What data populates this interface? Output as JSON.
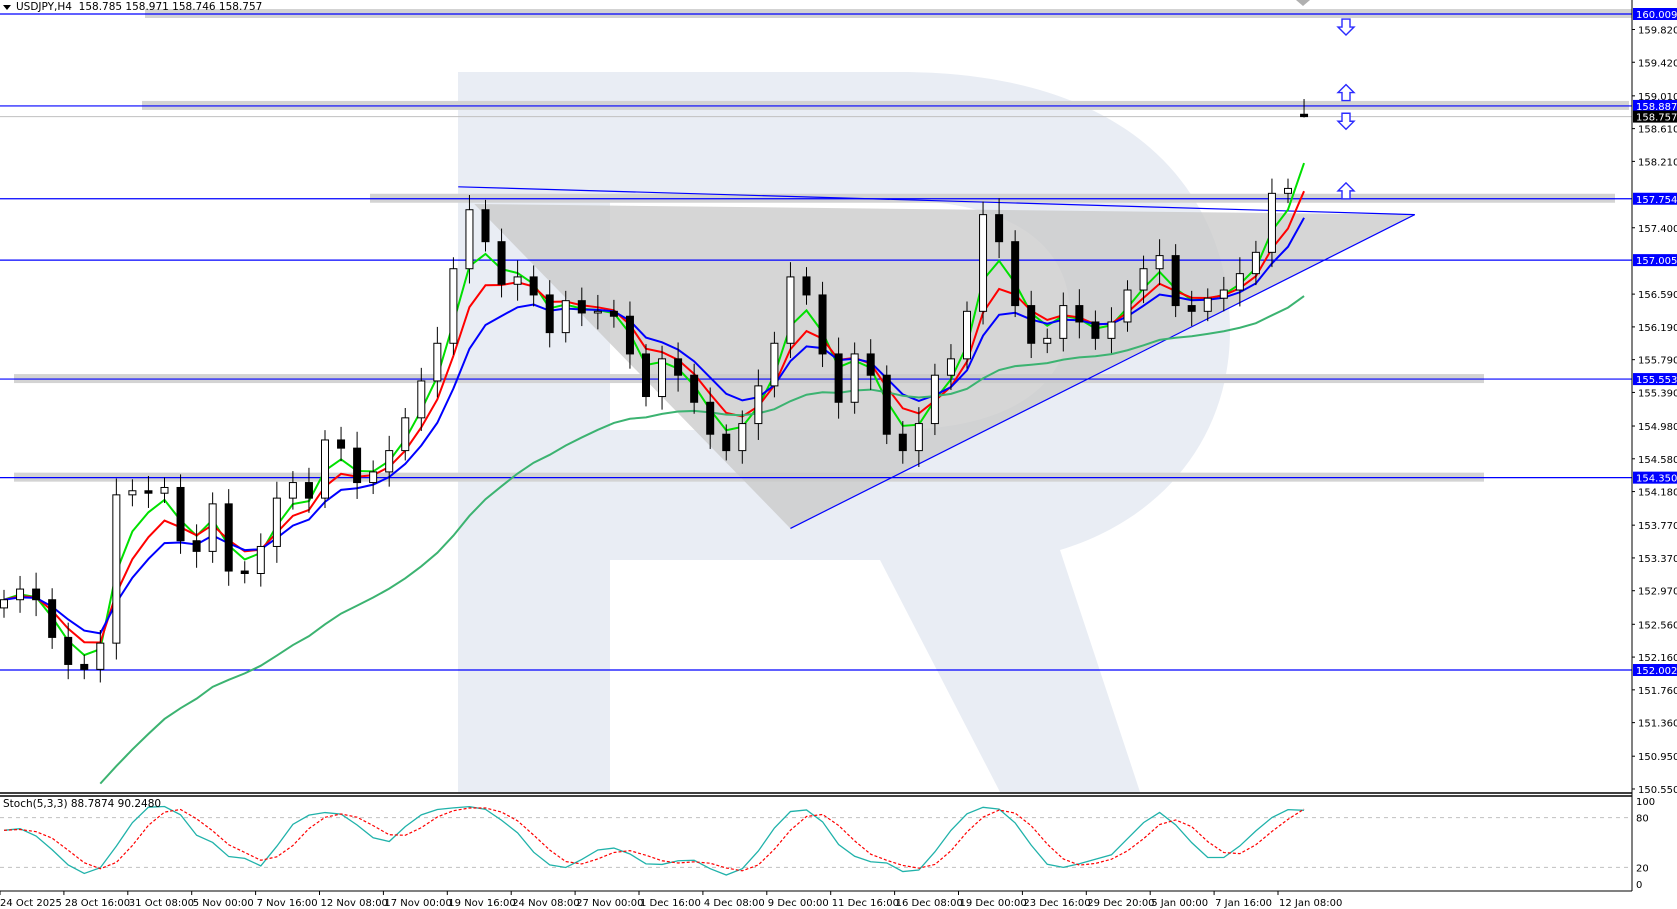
{
  "header": {
    "symbol": "USDJPY,H4",
    "ohlc": "158.785 158.971 158.746 158.757"
  },
  "stoch": {
    "label": "Stoch(5,3,3) 88.7874 90.2480",
    "levels": [
      "100",
      "80",
      "20",
      "0"
    ]
  },
  "colors": {
    "fast_ma": "#00e000",
    "mid_ma": "#ff0000",
    "slow_ma": "#0000ff",
    "long_ma": "#3cb371",
    "stoch_main": "#20b2aa",
    "stoch_signal": "#ff0000",
    "level_line": "#0000ff",
    "band": "#d3d3d3",
    "triangle_fill": "#c8c8c8"
  },
  "chart_data": {
    "type": "candlestick",
    "symbol": "USDJPY",
    "timeframe": "H4",
    "ylim": [
      150.55,
      160.009
    ],
    "closes": [
      152.86,
      152.99,
      152.86,
      152.4,
      152.07,
      152.01,
      152.33,
      154.14,
      154.19,
      154.16,
      154.23,
      153.58,
      153.45,
      154.03,
      153.21,
      153.18,
      153.51,
      154.1,
      154.29,
      154.1,
      154.81,
      154.71,
      154.29,
      154.42,
      154.68,
      155.08,
      155.53,
      155.99,
      156.9,
      157.62,
      157.23,
      156.71,
      156.8,
      156.58,
      156.12,
      156.51,
      156.36,
      156.38,
      156.32,
      155.86,
      155.34,
      155.8,
      155.6,
      155.27,
      154.88,
      154.68,
      155.01,
      155.47,
      155.99,
      156.8,
      156.58,
      155.86,
      155.27,
      155.86,
      155.6,
      154.88,
      154.68,
      155.01,
      155.6,
      155.8,
      156.38,
      157.56,
      157.23,
      156.45,
      155.99,
      156.05,
      156.45,
      156.25,
      156.05,
      156.25,
      156.64,
      156.9,
      157.06,
      156.45,
      156.38,
      156.54,
      156.64,
      156.84,
      157.1,
      157.82,
      157.88,
      158.757
    ],
    "last_bar": {
      "open": 158.785,
      "high": 158.971,
      "low": 158.746,
      "close": 158.757
    },
    "price_ticks": [
      "159.820",
      "159.420",
      "159.010",
      "158.610",
      "158.210",
      "157.400",
      "156.590",
      "156.190",
      "155.790",
      "155.390",
      "154.980",
      "154.580",
      "154.180",
      "153.770",
      "153.370",
      "152.970",
      "152.560",
      "152.160",
      "151.760",
      "151.360",
      "150.950",
      "150.550"
    ],
    "levels": [
      {
        "price": 160.009,
        "label": "160.009",
        "band": true
      },
      {
        "price": 158.887,
        "label": "158.887",
        "band": true
      },
      {
        "price": 157.754,
        "label": "157.754",
        "band": true
      },
      {
        "price": 157.005,
        "label": "157.005",
        "band": false
      },
      {
        "price": 155.553,
        "label": "155.553",
        "band": true
      },
      {
        "price": 154.35,
        "label": "154.350",
        "band": true
      },
      {
        "price": 152.002,
        "label": "152.002",
        "band": false
      }
    ],
    "current_price": {
      "price": 158.757,
      "label": "158.757"
    },
    "time_labels": [
      "24 Oct 2025",
      "28 Oct 16:00",
      "31 Oct 08:00",
      "5 Nov 00:00",
      "7 Nov 16:00",
      "12 Nov 08:00",
      "17 Nov 00:00",
      "19 Nov 16:00",
      "24 Nov 08:00",
      "27 Nov 00:00",
      "1 Dec 16:00",
      "4 Dec 08:00",
      "9 Dec 00:00",
      "11 Dec 16:00",
      "16 Dec 08:00",
      "19 Dec 00:00",
      "23 Dec 16:00",
      "29 Dec 20:00",
      "5 Jan 00:00",
      "7 Jan 16:00",
      "12 Jan 08:00"
    ],
    "triangle": {
      "top_start": [
        28.3,
        157.9
      ],
      "top_left": [
        29.3,
        157.69
      ],
      "apex": [
        87.9,
        157.56
      ],
      "bottom": [
        49,
        153.73
      ]
    },
    "signal_arrows": [
      {
        "direction": "down",
        "price": 159.85
      },
      {
        "direction": "up",
        "price": 159.05
      },
      {
        "direction": "down",
        "price": 158.7
      },
      {
        "direction": "up",
        "price": 157.85
      }
    ],
    "moving_averages": [
      "fast",
      "mid",
      "slow",
      "long"
    ],
    "stochastic": {
      "k_period": 5,
      "d_period": 3,
      "slowing": 3,
      "main": 88.7874,
      "signal": 90.248
    }
  }
}
